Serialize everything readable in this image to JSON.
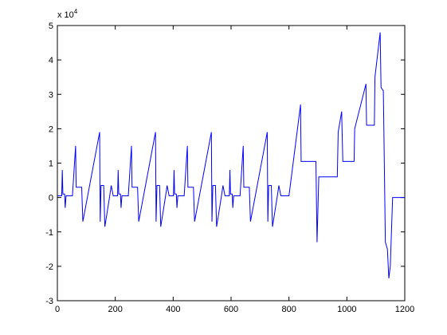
{
  "chart_data": {
    "type": "line",
    "y_exponent": {
      "base": "x 10",
      "power": "4"
    },
    "x": [
      0,
      15,
      17,
      19,
      25,
      27,
      30,
      52,
      63,
      65,
      84,
      88,
      146,
      148,
      151,
      160,
      164,
      180,
      186,
      193,
      208,
      210,
      212,
      218,
      220,
      223,
      245,
      256,
      258,
      277,
      281,
      339,
      341,
      344,
      353,
      357,
      373,
      379,
      386,
      401,
      403,
      405,
      411,
      413,
      416,
      438,
      449,
      451,
      470,
      474,
      532,
      534,
      537,
      546,
      550,
      566,
      572,
      579,
      594,
      596,
      598,
      604,
      606,
      609,
      631,
      642,
      644,
      663,
      667,
      725,
      727,
      730,
      739,
      743,
      759,
      765,
      772,
      800,
      840,
      842,
      893,
      897,
      903,
      967,
      970,
      982,
      986,
      1025,
      1027,
      1066,
      1068,
      1095,
      1097,
      1115,
      1118,
      1126,
      1133,
      1140,
      1145,
      1150,
      1158,
      1200
    ],
    "values": [
      0.05,
      0.05,
      0.8,
      0.1,
      0.1,
      -0.3,
      0.05,
      0.05,
      1.5,
      0.3,
      0.3,
      -0.7,
      1.9,
      -0.7,
      0.35,
      0.35,
      -0.85,
      0,
      0.35,
      0.05,
      0.05,
      0.8,
      0.1,
      0.1,
      -0.3,
      0.05,
      0.05,
      1.5,
      0.3,
      0.3,
      -0.7,
      1.9,
      -0.7,
      0.35,
      0.35,
      -0.85,
      0,
      0.35,
      0.05,
      0.05,
      0.8,
      0.1,
      0.1,
      -0.3,
      0.05,
      0.05,
      1.5,
      0.3,
      0.3,
      -0.7,
      1.9,
      -0.7,
      0.35,
      0.35,
      -0.85,
      0,
      0.35,
      0.05,
      0.05,
      0.8,
      0.1,
      0.1,
      -0.3,
      0.05,
      0.05,
      1.5,
      0.3,
      0.3,
      -0.7,
      1.9,
      -0.7,
      0.35,
      0.35,
      -0.85,
      0,
      0.35,
      0.05,
      0.05,
      2.7,
      1.05,
      1.05,
      -1.3,
      0.6,
      0.6,
      1.9,
      2.5,
      1.05,
      1.05,
      2.0,
      3.3,
      2.1,
      2.1,
      3.5,
      4.8,
      3.2,
      3.1,
      -1.3,
      -1.5,
      -2.35,
      -2.0,
      0,
      0
    ],
    "color": "#0000ff",
    "xlim": [
      0,
      1200
    ],
    "xticks": [
      0,
      200,
      400,
      600,
      800,
      1000,
      1200
    ],
    "ylim": [
      -3,
      5
    ],
    "yticks": [
      -3,
      -2,
      -1,
      0,
      1,
      2,
      3,
      4,
      5
    ]
  }
}
